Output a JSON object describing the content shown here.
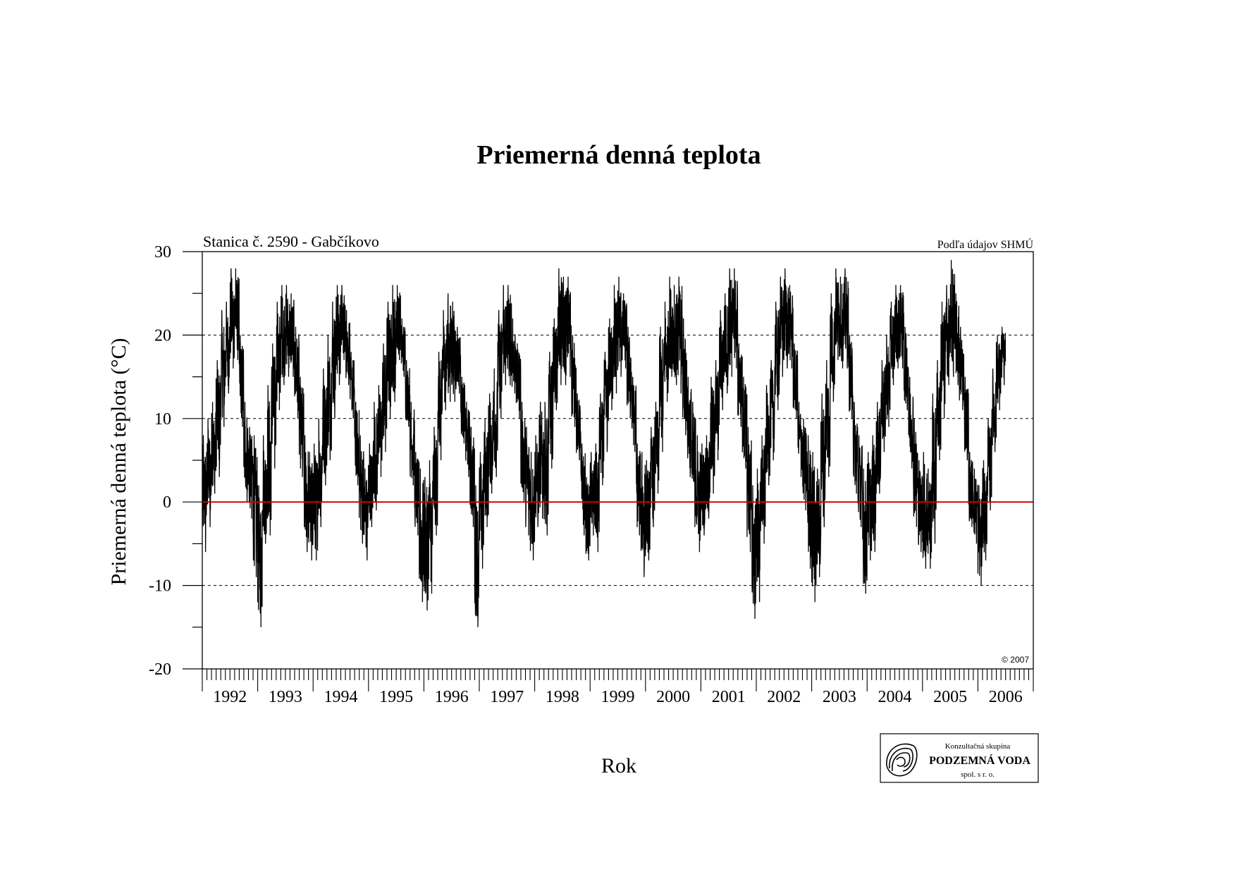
{
  "chart_data": {
    "type": "line",
    "title": "Priemerná denná teplota",
    "subtitle_left": "Stanica č. 2590 - Gabčíkovo",
    "subtitle_right": "Podľa údajov SHMÚ",
    "copyright": "© 2007",
    "xlabel": "Rok",
    "ylabel": "Priemerná denná teplota (°C)",
    "ylim": [
      -20,
      30
    ],
    "yticks": [
      "-20",
      "-10",
      "0",
      "10",
      "20",
      "30"
    ],
    "y_gridlines": [
      -10,
      10,
      20
    ],
    "zero_line_color": "#d40000",
    "x_categories": [
      "1992",
      "1993",
      "1994",
      "1995",
      "1996",
      "1997",
      "1998",
      "1999",
      "2000",
      "2001",
      "2002",
      "2003",
      "2004",
      "2005",
      "2006"
    ],
    "series": [
      {
        "color": "#000000",
        "x_unit": "year",
        "monthly_envelope": [
          {
            "year": 1992,
            "month_min": [
              -6,
              -3,
              1,
              3,
              9,
              13,
              16,
              17,
              9,
              0,
              -2,
              -9
            ],
            "month_max": [
              8,
              10,
              12,
              17,
              23,
              24,
              28,
              28,
              20,
              12,
              9,
              8
            ]
          },
          {
            "year": 1993,
            "month_min": [
              -15,
              -5,
              -4,
              4,
              11,
              14,
              15,
              15,
              10,
              3,
              -6,
              -7
            ],
            "month_max": [
              2,
              8,
              14,
              19,
              24,
              26,
              26,
              25,
              21,
              15,
              8,
              6
            ]
          },
          {
            "year": 1994,
            "month_min": [
              -7,
              -3,
              2,
              5,
              10,
              14,
              17,
              14,
              10,
              2,
              -5,
              -7
            ],
            "month_max": [
              7,
              10,
              16,
              20,
              24,
              26,
              26,
              23,
              18,
              12,
              8,
              4
            ]
          },
          {
            "year": 1995,
            "month_min": [
              -3,
              -1,
              3,
              6,
              10,
              12,
              17,
              15,
              9,
              2,
              -4,
              -12
            ],
            "month_max": [
              7,
              12,
              14,
              19,
              24,
              26,
              26,
              22,
              17,
              12,
              6,
              4
            ]
          },
          {
            "year": 1996,
            "month_min": [
              -13,
              -11,
              -4,
              5,
              11,
              12,
              12,
              13,
              7,
              3,
              -3,
              -15
            ],
            "month_max": [
              3,
              5,
              9,
              18,
              23,
              25,
              24,
              21,
              15,
              12,
              9,
              2
            ]
          },
          {
            "year": 1997,
            "month_min": [
              -8,
              -3,
              1,
              3,
              10,
              14,
              14,
              13,
              10,
              0,
              -4,
              -7
            ],
            "month_max": [
              6,
              10,
              13,
              16,
              23,
              26,
              26,
              22,
              19,
              12,
              9,
              6
            ]
          },
          {
            "year": 1998,
            "month_min": [
              -3,
              -2,
              -4,
              4,
              11,
              14,
              14,
              15,
              9,
              5,
              -4,
              -7
            ],
            "month_max": [
              8,
              12,
              12,
              18,
              22,
              28,
              27,
              27,
              20,
              13,
              7,
              3
            ]
          },
          {
            "year": 1999,
            "month_min": [
              -4,
              -6,
              2,
              6,
              11,
              13,
              15,
              16,
              10,
              6,
              -4,
              -9
            ],
            "month_max": [
              6,
              7,
              13,
              18,
              22,
              26,
              27,
              25,
              21,
              15,
              7,
              6
            ]
          },
          {
            "year": 2000,
            "month_min": [
              -7,
              -3,
              1,
              6,
              12,
              15,
              14,
              13,
              8,
              3,
              -3,
              -6
            ],
            "month_max": [
              5,
              9,
              12,
              21,
              24,
              27,
              26,
              27,
              22,
              15,
              12,
              8
            ]
          },
          {
            "year": 2001,
            "month_min": [
              -4,
              -2,
              1,
              5,
              11,
              13,
              15,
              16,
              9,
              4,
              -6,
              -14
            ],
            "month_max": [
              7,
              8,
              15,
              17,
              23,
              25,
              28,
              28,
              19,
              15,
              9,
              2
            ]
          },
          {
            "year": 2002,
            "month_min": [
              -12,
              -5,
              2,
              5,
              11,
              15,
              16,
              16,
              10,
              3,
              -1,
              -8
            ],
            "month_max": [
              4,
              8,
              14,
              17,
              24,
              27,
              28,
              26,
              19,
              12,
              10,
              8
            ]
          },
          {
            "year": 2003,
            "month_min": [
              -12,
              -9,
              -3,
              3,
              12,
              17,
              16,
              16,
              10,
              1,
              -3,
              -11
            ],
            "month_max": [
              6,
              4,
              13,
              17,
              25,
              28,
              27,
              28,
              20,
              12,
              8,
              4
            ]
          },
          {
            "year": 2004,
            "month_min": [
              -7,
              -6,
              1,
              6,
              9,
              14,
              16,
              16,
              11,
              4,
              -3,
              -6
            ],
            "month_max": [
              6,
              8,
              12,
              17,
              20,
              24,
              26,
              26,
              21,
              15,
              10,
              5
            ]
          },
          {
            "year": 2005,
            "month_min": [
              -8,
              -8,
              -5,
              5,
              10,
              14,
              15,
              14,
              11,
              5,
              -3,
              -5
            ],
            "month_max": [
              6,
              4,
              13,
              17,
              24,
              26,
              29,
              25,
              21,
              15,
              6,
              4
            ]
          },
          {
            "year": 2006,
            "month_min": [
              -10,
              -7,
              -1,
              6,
              11,
              14
            ],
            "month_max": [
              2,
              5,
              10,
              16,
              20,
              21
            ]
          }
        ]
      }
    ]
  },
  "logo": {
    "line1": "Konzultačná skupina",
    "line2": "PODZEMNÁ VODA",
    "line3": "spol. s r. o."
  },
  "colors": {
    "zero_line": "#d40000",
    "trace": "#000000",
    "grid": "#000000"
  }
}
